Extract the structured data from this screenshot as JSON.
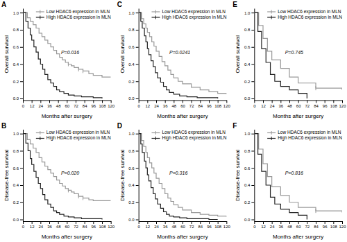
{
  "chart_data": [
    {
      "type": "step",
      "title": "A",
      "x_label": "Months after surgery",
      "y_label": "Overall survival",
      "series": [
        {
          "name": "Low HDAC6 expression in MLN",
          "color": "#999999",
          "x": [
            0,
            6,
            10,
            14,
            18,
            22,
            26,
            30,
            34,
            38,
            42,
            46,
            50,
            54,
            58,
            62,
            66,
            70,
            76,
            82,
            90,
            96,
            108,
            120
          ],
          "values": [
            1.0,
            0.94,
            0.9,
            0.86,
            0.82,
            0.76,
            0.72,
            0.68,
            0.64,
            0.6,
            0.56,
            0.52,
            0.48,
            0.45,
            0.42,
            0.4,
            0.38,
            0.36,
            0.34,
            0.32,
            0.29,
            0.27,
            0.25,
            0.25
          ],
          "censor_x": [
            62,
            76,
            82
          ]
        },
        {
          "name": "High HDAC6 expression in MLN",
          "color": "#222222",
          "x": [
            0,
            4,
            7,
            10,
            12,
            15,
            18,
            21,
            24,
            27,
            30,
            34,
            38,
            42,
            46,
            50,
            56,
            62,
            70,
            80,
            96,
            108
          ],
          "values": [
            1.0,
            0.9,
            0.82,
            0.74,
            0.68,
            0.6,
            0.54,
            0.46,
            0.4,
            0.34,
            0.28,
            0.22,
            0.18,
            0.14,
            0.1,
            0.08,
            0.06,
            0.04,
            0.03,
            0.02,
            0.01,
            0.0
          ]
        }
      ],
      "annotations": [
        {
          "text": "P=0.016",
          "x": 52,
          "y": 0.52
        }
      ],
      "xlim": [
        0,
        120
      ],
      "ylim": [
        -0.02,
        1.05
      ],
      "xticks": [
        0,
        12,
        24,
        36,
        48,
        60,
        72,
        84,
        96,
        108,
        120
      ],
      "yticks": [
        {
          "value": 0.0,
          "label": "0.0"
        },
        0.2,
        0.4,
        0.6,
        0.8,
        {
          "value": 1.0,
          "label": "1.0"
        }
      ],
      "legend": "upper right",
      "grid": false
    },
    {
      "type": "step",
      "title": "C",
      "x_label": "Months after surgery",
      "y_label": "Overall survival",
      "series": [
        {
          "name": "Low HDAC6 expression in MLN",
          "color": "#999999",
          "x": [
            0,
            4,
            7,
            10,
            12,
            15,
            18,
            21,
            24,
            28,
            32,
            36,
            40,
            44,
            48,
            54,
            60,
            72,
            84,
            96,
            108,
            120
          ],
          "values": [
            1.0,
            0.93,
            0.87,
            0.82,
            0.77,
            0.72,
            0.66,
            0.61,
            0.55,
            0.49,
            0.43,
            0.38,
            0.33,
            0.28,
            0.24,
            0.2,
            0.17,
            0.13,
            0.1,
            0.08,
            0.06,
            0.05
          ]
        },
        {
          "name": "High HDAC6 expression in MLN",
          "color": "#222222",
          "x": [
            0,
            3,
            5,
            8,
            10,
            12,
            14,
            17,
            20,
            23,
            26,
            30,
            34,
            38,
            42,
            48,
            56,
            66,
            80,
            96,
            108
          ],
          "values": [
            1.0,
            0.9,
            0.82,
            0.73,
            0.66,
            0.58,
            0.51,
            0.44,
            0.37,
            0.3,
            0.24,
            0.19,
            0.14,
            0.1,
            0.07,
            0.05,
            0.03,
            0.02,
            0.01,
            0.01,
            0.0
          ]
        }
      ],
      "annotations": [
        {
          "text": "P=0.0241",
          "x": 42,
          "y": 0.52
        }
      ],
      "xlim": [
        0,
        120
      ],
      "ylim": [
        -0.02,
        1.05
      ],
      "xticks": [
        0,
        12,
        24,
        36,
        48,
        60,
        72,
        84,
        96,
        108,
        120
      ],
      "yticks": [
        {
          "value": 0.0,
          "label": "0.0"
        },
        0.2,
        0.4,
        0.6,
        0.8,
        {
          "value": 1.0,
          "label": "1.0"
        }
      ],
      "legend": "upper right",
      "grid": false
    },
    {
      "type": "step",
      "title": "E",
      "x_label": "Months after surgery",
      "y_label": "Overall survival",
      "series": [
        {
          "name": "Low HDAC6 expression in MLN",
          "color": "#999999",
          "x": [
            0,
            6,
            12,
            18,
            24,
            36,
            48,
            60,
            84,
            120
          ],
          "values": [
            1.0,
            0.85,
            0.7,
            0.55,
            0.45,
            0.35,
            0.25,
            0.18,
            0.12,
            0.1
          ],
          "censor_x": [
            84
          ]
        },
        {
          "name": "High HDAC6 expression in MLN",
          "color": "#222222",
          "x": [
            0,
            5,
            10,
            16,
            22,
            28,
            36,
            48,
            60,
            72
          ],
          "values": [
            1.0,
            0.78,
            0.58,
            0.42,
            0.28,
            0.2,
            0.14,
            0.1,
            0.06,
            0.0
          ]
        }
      ],
      "annotations": [
        {
          "text": "P=0.745",
          "x": 42,
          "y": 0.52
        }
      ],
      "xlim": [
        0,
        120
      ],
      "ylim": [
        -0.02,
        1.05
      ],
      "xticks": [
        0,
        12,
        24,
        36,
        48,
        60,
        72,
        84,
        96,
        108,
        120
      ],
      "yticks": [
        {
          "value": 0.0,
          "label": "0.0"
        },
        0.2,
        0.4,
        0.6,
        0.8,
        {
          "value": 1.0,
          "label": "1.0"
        }
      ],
      "legend": "upper right",
      "grid": false
    },
    {
      "type": "step",
      "title": "B",
      "x_label": "Months after surgery",
      "y_label": "Disease-free survival",
      "series": [
        {
          "name": "Low HDAC6 expression in MLN",
          "color": "#999999",
          "x": [
            0,
            6,
            10,
            14,
            18,
            22,
            26,
            30,
            34,
            38,
            42,
            46,
            50,
            54,
            58,
            62,
            66,
            70,
            76,
            82,
            90,
            96,
            108,
            120
          ],
          "values": [
            1.0,
            0.93,
            0.88,
            0.83,
            0.78,
            0.72,
            0.67,
            0.62,
            0.58,
            0.54,
            0.5,
            0.46,
            0.42,
            0.39,
            0.36,
            0.34,
            0.32,
            0.3,
            0.27,
            0.25,
            0.23,
            0.22,
            0.22,
            0.22
          ],
          "censor_x": [
            62,
            76,
            82
          ]
        },
        {
          "name": "High HDAC6 expression in MLN",
          "color": "#222222",
          "x": [
            0,
            4,
            7,
            10,
            12,
            15,
            18,
            21,
            24,
            27,
            30,
            34,
            38,
            42,
            46,
            50,
            56,
            62,
            70,
            80,
            96,
            108
          ],
          "values": [
            1.0,
            0.89,
            0.8,
            0.71,
            0.64,
            0.56,
            0.49,
            0.42,
            0.36,
            0.29,
            0.23,
            0.18,
            0.14,
            0.1,
            0.08,
            0.06,
            0.04,
            0.03,
            0.02,
            0.01,
            0.01,
            0.0
          ]
        }
      ],
      "annotations": [
        {
          "text": "P=0.020",
          "x": 52,
          "y": 0.52
        }
      ],
      "xlim": [
        0,
        120
      ],
      "ylim": [
        -0.02,
        1.05
      ],
      "xticks": [
        0,
        12,
        24,
        36,
        48,
        60,
        72,
        84,
        96,
        108,
        120
      ],
      "yticks": [
        {
          "value": 0.0,
          "label": "0.0"
        },
        0.2,
        0.4,
        0.6,
        0.8,
        {
          "value": 1.0,
          "label": "1.0"
        }
      ],
      "legend": "upper right",
      "grid": false
    },
    {
      "type": "step",
      "title": "D",
      "x_label": "Months after surgery",
      "y_label": "Disease-free survival",
      "series": [
        {
          "name": "Low HDAC6 expression in MLN",
          "color": "#999999",
          "x": [
            0,
            4,
            7,
            10,
            12,
            15,
            18,
            21,
            24,
            28,
            32,
            36,
            40,
            44,
            48,
            54,
            60,
            72,
            84,
            96,
            108,
            120
          ],
          "values": [
            1.0,
            0.92,
            0.85,
            0.78,
            0.72,
            0.66,
            0.6,
            0.54,
            0.48,
            0.42,
            0.36,
            0.3,
            0.25,
            0.21,
            0.17,
            0.14,
            0.11,
            0.08,
            0.06,
            0.05,
            0.04,
            0.03
          ]
        },
        {
          "name": "High HDAC6 expression in MLN",
          "color": "#222222",
          "x": [
            0,
            3,
            5,
            8,
            10,
            12,
            14,
            17,
            20,
            23,
            26,
            30,
            34,
            38,
            42,
            48,
            56,
            66,
            80,
            96,
            108
          ],
          "values": [
            1.0,
            0.88,
            0.78,
            0.68,
            0.6,
            0.52,
            0.45,
            0.37,
            0.3,
            0.24,
            0.18,
            0.13,
            0.09,
            0.06,
            0.04,
            0.03,
            0.02,
            0.01,
            0.01,
            0.0,
            0.0
          ]
        }
      ],
      "annotations": [
        {
          "text": "P=0.316",
          "x": 42,
          "y": 0.52
        }
      ],
      "xlim": [
        0,
        120
      ],
      "ylim": [
        -0.02,
        1.05
      ],
      "xticks": [
        0,
        12,
        24,
        36,
        48,
        60,
        72,
        84,
        96,
        108,
        120
      ],
      "yticks": [
        {
          "value": 0.0,
          "label": "0.0"
        },
        0.2,
        0.4,
        0.6,
        0.8,
        {
          "value": 1.0,
          "label": "1.0"
        }
      ],
      "legend": "upper right",
      "grid": false
    },
    {
      "type": "step",
      "title": "F",
      "x_label": "Months after surgery",
      "y_label": "Disease-free survival",
      "series": [
        {
          "name": "Low HDAC6 expression in MLN",
          "color": "#999999",
          "x": [
            0,
            6,
            12,
            18,
            24,
            36,
            48,
            60,
            84,
            120
          ],
          "values": [
            1.0,
            0.82,
            0.65,
            0.5,
            0.38,
            0.28,
            0.2,
            0.14,
            0.1,
            0.08
          ],
          "censor_x": [
            84
          ]
        },
        {
          "name": "High HDAC6 expression in MLN",
          "color": "#222222",
          "x": [
            0,
            5,
            10,
            16,
            22,
            28,
            36,
            48,
            60,
            72
          ],
          "values": [
            1.0,
            0.76,
            0.56,
            0.4,
            0.26,
            0.18,
            0.12,
            0.08,
            0.05,
            0.0
          ]
        }
      ],
      "annotations": [
        {
          "text": "P=0.816",
          "x": 42,
          "y": 0.52
        }
      ],
      "xlim": [
        0,
        120
      ],
      "ylim": [
        -0.02,
        1.05
      ],
      "xticks": [
        0,
        12,
        24,
        36,
        48,
        60,
        72,
        84,
        96,
        108,
        120
      ],
      "yticks": [
        {
          "value": 0.0,
          "label": "0.0"
        },
        0.2,
        0.4,
        0.6,
        0.8,
        {
          "value": 1.0,
          "label": "1.0"
        }
      ],
      "legend": "upper right",
      "grid": false
    }
  ]
}
